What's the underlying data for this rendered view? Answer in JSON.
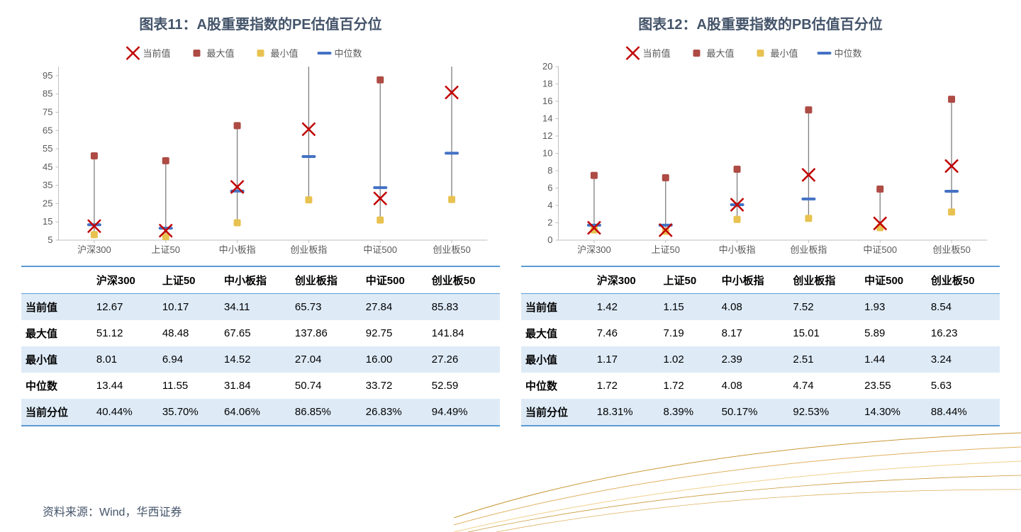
{
  "leftPanel": {
    "title": "图表11：A股重要指数的PE估值百分位",
    "chart": {
      "type": "range-with-markers",
      "categories": [
        "沪深300",
        "上证50",
        "中小板指",
        "创业板指",
        "中证500",
        "创业板50"
      ],
      "series": {
        "current": {
          "label": "当前值",
          "marker": "x",
          "color": "#c00000",
          "values": [
            12.67,
            10.17,
            34.11,
            65.73,
            27.84,
            85.83
          ]
        },
        "max": {
          "label": "最大值",
          "marker": "square",
          "color": "#ad4b44",
          "values": [
            51.12,
            48.48,
            67.65,
            137.86,
            92.75,
            141.84
          ]
        },
        "min": {
          "label": "最小值",
          "marker": "square",
          "color": "#e8c251",
          "values": [
            8.01,
            6.94,
            14.52,
            27.04,
            16.0,
            27.26
          ]
        },
        "median": {
          "label": "中位数",
          "marker": "dash",
          "color": "#4472c4",
          "values": [
            13.44,
            11.55,
            31.84,
            50.74,
            33.72,
            52.59
          ]
        }
      },
      "ylim": [
        5,
        100
      ],
      "ytick_step": 10,
      "stem_color": "#7f7f7f",
      "grid_color": "#d9d9d9",
      "axis_color": "#bfbfbf",
      "marker_size": 10,
      "x_marker_size": 9,
      "dash_width": 16,
      "label_fontsize": 13,
      "background": "#ffffff"
    },
    "table": {
      "columns": [
        "沪深300",
        "上证50",
        "中小板指",
        "创业板指",
        "中证500",
        "创业板50"
      ],
      "rows": [
        {
          "label": "当前值",
          "values": [
            "12.67",
            "10.17",
            "34.11",
            "65.73",
            "27.84",
            "85.83"
          ]
        },
        {
          "label": "最大值",
          "values": [
            "51.12",
            "48.48",
            "67.65",
            "137.86",
            "92.75",
            "141.84"
          ]
        },
        {
          "label": "最小值",
          "values": [
            "8.01",
            "6.94",
            "14.52",
            "27.04",
            "16.00",
            "27.26"
          ]
        },
        {
          "label": "中位数",
          "values": [
            "13.44",
            "11.55",
            "31.84",
            "50.74",
            "33.72",
            "52.59"
          ]
        },
        {
          "label": "当前分位",
          "values": [
            "40.44%",
            "35.70%",
            "64.06%",
            "86.85%",
            "26.83%",
            "94.49%"
          ]
        }
      ],
      "alt_row_bg": "#deebf7",
      "border_color": "#5b9bd5"
    }
  },
  "rightPanel": {
    "title": "图表12：A股重要指数的PB估值百分位",
    "chart": {
      "type": "range-with-markers",
      "categories": [
        "沪深300",
        "上证50",
        "中小板指",
        "创业板指",
        "中证500",
        "创业板50"
      ],
      "series": {
        "current": {
          "label": "当前值",
          "marker": "x",
          "color": "#c00000",
          "values": [
            1.42,
            1.15,
            4.08,
            7.52,
            1.93,
            8.54
          ]
        },
        "max": {
          "label": "最大值",
          "marker": "square",
          "color": "#ad4b44",
          "values": [
            7.46,
            7.19,
            8.17,
            15.01,
            5.89,
            16.23
          ]
        },
        "min": {
          "label": "最小值",
          "marker": "square",
          "color": "#e8c251",
          "values": [
            1.17,
            1.02,
            2.39,
            2.51,
            1.44,
            3.24
          ]
        },
        "median": {
          "label": "中位数",
          "marker": "dash",
          "color": "#4472c4",
          "values": [
            1.72,
            1.72,
            4.08,
            4.74,
            23.55,
            5.63
          ]
        }
      },
      "ylim": [
        0,
        20
      ],
      "ytick_step": 2,
      "stem_color": "#7f7f7f",
      "grid_color": "#d9d9d9",
      "axis_color": "#bfbfbf",
      "marker_size": 10,
      "x_marker_size": 9,
      "dash_width": 16,
      "label_fontsize": 13,
      "background": "#ffffff"
    },
    "table": {
      "columns": [
        "沪深300",
        "上证50",
        "中小板指",
        "创业板指",
        "中证500",
        "创业板50"
      ],
      "rows": [
        {
          "label": "当前值",
          "values": [
            "1.42",
            "1.15",
            "4.08",
            "7.52",
            "1.93",
            "8.54"
          ]
        },
        {
          "label": "最大值",
          "values": [
            "7.46",
            "7.19",
            "8.17",
            "15.01",
            "5.89",
            "16.23"
          ]
        },
        {
          "label": "最小值",
          "values": [
            "1.17",
            "1.02",
            "2.39",
            "2.51",
            "1.44",
            "3.24"
          ]
        },
        {
          "label": "中位数",
          "values": [
            "1.72",
            "1.72",
            "4.08",
            "4.74",
            "23.55",
            "5.63"
          ]
        },
        {
          "label": "当前分位",
          "values": [
            "18.31%",
            "8.39%",
            "50.17%",
            "92.53%",
            "14.30%",
            "88.44%"
          ]
        }
      ],
      "alt_row_bg": "#deebf7",
      "border_color": "#5b9bd5"
    }
  },
  "source": "资料来源：Wind，华西证券",
  "decor_colors": [
    "#c99838",
    "#e0b060",
    "#f0d08a"
  ]
}
